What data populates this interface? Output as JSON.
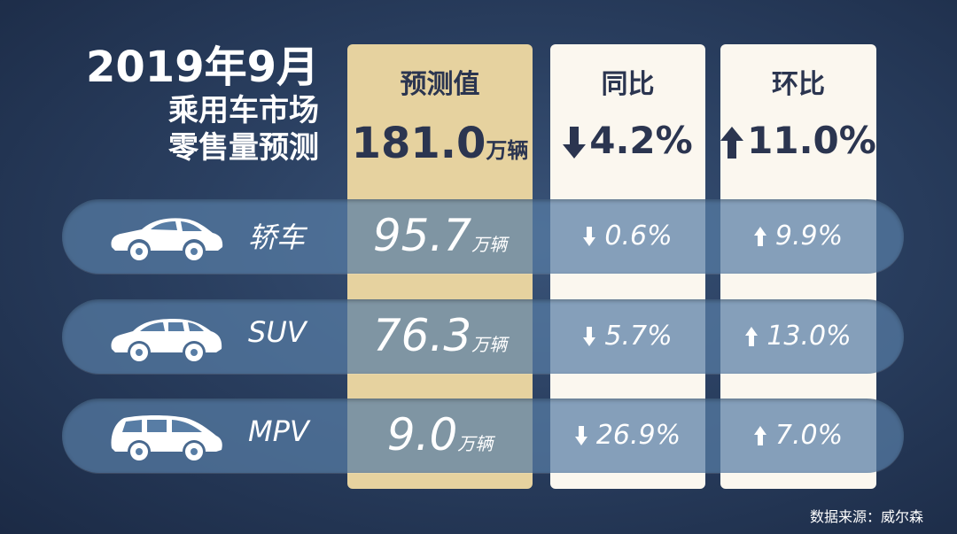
{
  "title": {
    "line1": "2019年9月",
    "line2": "乘用车市场",
    "line3": "零售量预测"
  },
  "columns": {
    "forecast": "预测值",
    "yoy": "同比",
    "mom": "环比"
  },
  "totals": {
    "forecast_value": "181.0",
    "unit": "万辆",
    "yoy_text": "4.2%",
    "yoy_direction": "down",
    "mom_text": "11.0%",
    "mom_direction": "up"
  },
  "rows": [
    {
      "name": "轿车",
      "icon": "sedan-icon",
      "value": "95.7",
      "unit": "万辆",
      "yoy": "0.6%",
      "yoy_direction": "down",
      "mom": "9.9%",
      "mom_direction": "up"
    },
    {
      "name": "SUV",
      "icon": "suv-icon",
      "value": "76.3",
      "unit": "万辆",
      "yoy": "5.7%",
      "yoy_direction": "down",
      "mom": "13.0%",
      "mom_direction": "up"
    },
    {
      "name": "MPV",
      "icon": "mpv-icon",
      "value": "9.0",
      "unit": "万辆",
      "yoy": "26.9%",
      "yoy_direction": "down",
      "mom": "7.0%",
      "mom_direction": "up"
    }
  ],
  "source": "数据来源：威尔森",
  "colors": {
    "forecast_column": "#e6d29f",
    "change_columns": "#fbf7ef",
    "text_dark": "#2b3550",
    "row_bar": "#587da5"
  },
  "chart_data": {
    "type": "table",
    "columns": [
      "预测值",
      "同比",
      "环比"
    ],
    "unit": "万辆",
    "total": {
      "forecast": 181.0,
      "yoy_pct": -4.2,
      "mom_pct": 11.0
    },
    "categories": [
      "轿车",
      "SUV",
      "MPV"
    ],
    "series": [
      {
        "name": "预测值",
        "values": [
          95.7,
          76.3,
          9.0
        ]
      },
      {
        "name": "同比",
        "values": [
          -0.6,
          -5.7,
          -26.9
        ]
      },
      {
        "name": "环比",
        "values": [
          9.9,
          13.0,
          7.0
        ]
      }
    ]
  }
}
